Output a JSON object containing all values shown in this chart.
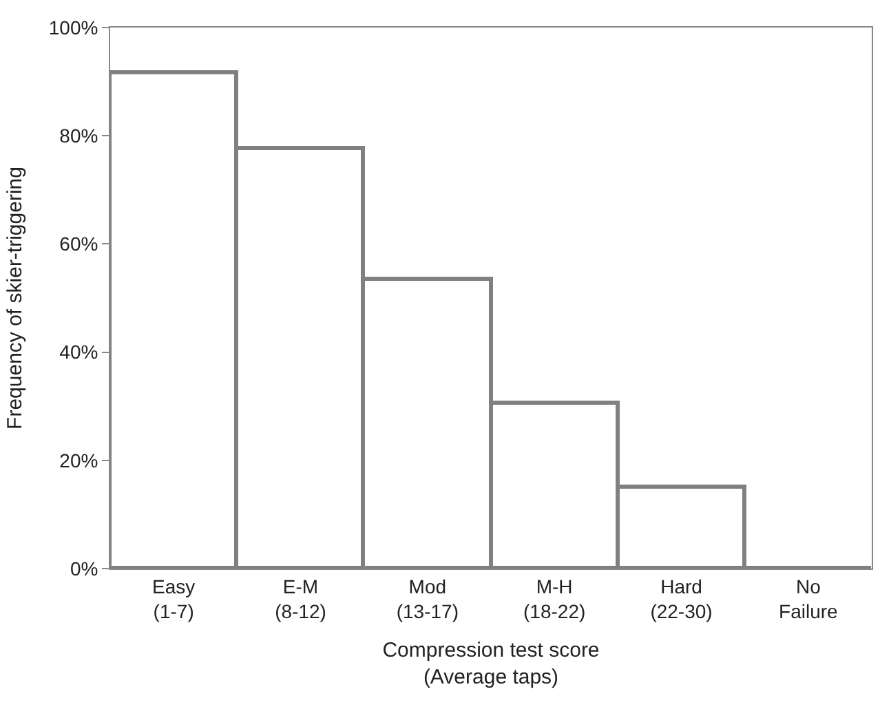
{
  "chart_data": {
    "type": "bar",
    "xlabel": "Compression test score\n(Average taps)",
    "ylabel": "Frequency of skier-triggering",
    "categories": [
      "Easy\n(1-7)",
      "E-M\n(8-12)",
      "Mod\n(13-17)",
      "M-H\n(18-22)",
      "Hard\n(22-30)",
      "No\nFailure"
    ],
    "values": [
      91.5,
      77.5,
      53.5,
      30.5,
      15,
      0
    ],
    "color": "#808080",
    "ylim": [
      0,
      100
    ],
    "yticks": [
      {
        "value": 0,
        "label": "0%"
      },
      {
        "value": 20,
        "label": "20%"
      },
      {
        "value": 40,
        "label": "40%"
      },
      {
        "value": 60,
        "label": "60%"
      },
      {
        "value": 80,
        "label": "80%"
      },
      {
        "value": 100,
        "label": "100%"
      }
    ]
  }
}
